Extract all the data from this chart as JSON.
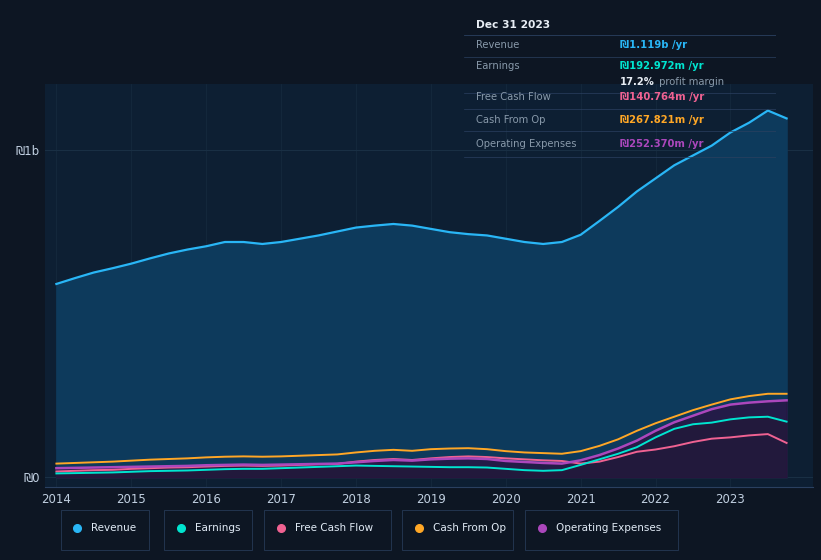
{
  "bg_color": "#0d1623",
  "chart_area_color": "#0d1f33",
  "years": [
    2014.0,
    2014.25,
    2014.5,
    2014.75,
    2015.0,
    2015.25,
    2015.5,
    2015.75,
    2016.0,
    2016.25,
    2016.5,
    2016.75,
    2017.0,
    2017.25,
    2017.5,
    2017.75,
    2018.0,
    2018.25,
    2018.5,
    2018.75,
    2019.0,
    2019.25,
    2019.5,
    2019.75,
    2020.0,
    2020.25,
    2020.5,
    2020.75,
    2021.0,
    2021.25,
    2021.5,
    2021.75,
    2022.0,
    2022.25,
    2022.5,
    2022.75,
    2023.0,
    2023.25,
    2023.5,
    2023.75
  ],
  "revenue": [
    590,
    608,
    625,
    638,
    652,
    668,
    683,
    695,
    705,
    718,
    718,
    712,
    718,
    728,
    738,
    750,
    762,
    768,
    773,
    768,
    758,
    748,
    742,
    738,
    728,
    718,
    712,
    718,
    740,
    782,
    825,
    872,
    912,
    952,
    982,
    1012,
    1052,
    1082,
    1119,
    1095
  ],
  "earnings": [
    12,
    13,
    14,
    15,
    17,
    19,
    20,
    21,
    23,
    25,
    26,
    26,
    28,
    30,
    32,
    34,
    36,
    35,
    34,
    33,
    32,
    31,
    31,
    30,
    26,
    22,
    20,
    22,
    38,
    55,
    72,
    92,
    122,
    148,
    162,
    167,
    177,
    183,
    185,
    170
  ],
  "free_cash_flow": [
    18,
    20,
    22,
    23,
    26,
    28,
    30,
    31,
    33,
    35,
    36,
    35,
    36,
    38,
    40,
    41,
    48,
    53,
    56,
    53,
    58,
    62,
    64,
    62,
    58,
    55,
    52,
    50,
    42,
    48,
    62,
    78,
    85,
    95,
    108,
    118,
    122,
    128,
    132,
    105
  ],
  "cash_from_op": [
    42,
    44,
    46,
    48,
    51,
    54,
    56,
    58,
    61,
    63,
    64,
    63,
    64,
    66,
    68,
    70,
    76,
    81,
    84,
    81,
    86,
    88,
    89,
    86,
    80,
    76,
    74,
    72,
    80,
    96,
    116,
    142,
    165,
    185,
    205,
    222,
    238,
    248,
    255,
    255
  ],
  "operating_expenses": [
    28,
    29,
    30,
    31,
    32,
    33,
    34,
    35,
    37,
    38,
    39,
    38,
    39,
    40,
    41,
    42,
    46,
    50,
    53,
    51,
    55,
    57,
    58,
    56,
    50,
    47,
    44,
    42,
    52,
    68,
    88,
    112,
    142,
    168,
    188,
    208,
    222,
    228,
    232,
    235
  ],
  "revenue_color": "#29b6f6",
  "earnings_color": "#00e5d0",
  "free_cash_flow_color": "#f06292",
  "cash_from_op_color": "#ffa726",
  "operating_expenses_color": "#ab47bc",
  "revenue_fill_color": "#0d3a5c",
  "earnings_fill_color": "#0a2e2c",
  "operating_expenses_fill_color": "#2d1040",
  "xlim_min": 2013.85,
  "xlim_max": 2024.1,
  "ylim_min": -30,
  "ylim_max": 1200,
  "xticks": [
    2014,
    2015,
    2016,
    2017,
    2018,
    2019,
    2020,
    2021,
    2022,
    2023
  ],
  "ytick_vals": [
    0,
    1000
  ],
  "ytick_labels": [
    "₪0",
    "₪1b"
  ],
  "grid_color": "#1a3045",
  "legend_items": [
    "Revenue",
    "Earnings",
    "Free Cash Flow",
    "Cash From Op",
    "Operating Expenses"
  ],
  "legend_colors": [
    "#29b6f6",
    "#00e5d0",
    "#f06292",
    "#ffa726",
    "#ab47bc"
  ],
  "infobox_title": "Dec 31 2023",
  "infobox_labels": [
    "Revenue",
    "Earnings",
    "",
    "Free Cash Flow",
    "Cash From Op",
    "Operating Expenses"
  ],
  "infobox_values": [
    "₪1.119b /yr",
    "₪192.972m /yr",
    "",
    "₪140.764m /yr",
    "₪267.821m /yr",
    "₪252.370m /yr"
  ],
  "infobox_val_colors": [
    "#29b6f6",
    "#00e5d0",
    "#ffffff",
    "#f06292",
    "#ffa726",
    "#ab47bc"
  ],
  "profit_margin_pct": "17.2%",
  "profit_margin_text": " profit margin"
}
